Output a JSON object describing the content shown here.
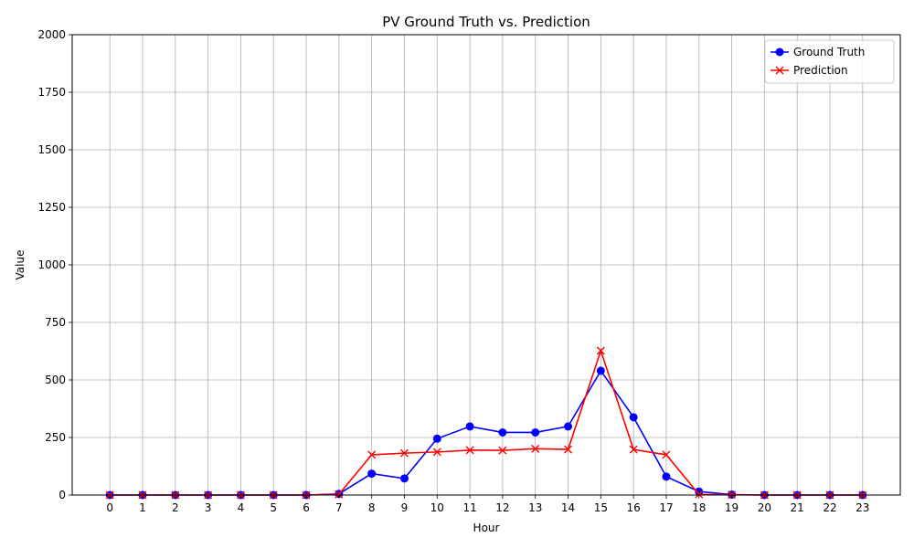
{
  "chart_data": {
    "type": "line",
    "title": "PV Ground Truth vs. Prediction",
    "xlabel": "Hour",
    "ylabel": "Value",
    "x": [
      0,
      1,
      2,
      3,
      4,
      5,
      6,
      7,
      8,
      9,
      10,
      11,
      12,
      13,
      14,
      15,
      16,
      17,
      18,
      19,
      20,
      21,
      22,
      23
    ],
    "ylim": [
      0,
      2000
    ],
    "yticks": [
      0,
      250,
      500,
      750,
      1000,
      1250,
      1500,
      1750,
      2000
    ],
    "grid": true,
    "legend_position": "top-right",
    "series": [
      {
        "name": "Ground Truth",
        "color": "#0000ff",
        "marker": "circle",
        "values": [
          0,
          0,
          0,
          0,
          0,
          0,
          0,
          5,
          93,
          72,
          245,
          298,
          272,
          272,
          298,
          540,
          338,
          80,
          15,
          2,
          0,
          0,
          0,
          0
        ]
      },
      {
        "name": "Prediction",
        "color": "#ff0000",
        "marker": "x",
        "values": [
          0,
          0,
          0,
          0,
          0,
          0,
          0,
          3,
          175,
          182,
          187,
          195,
          194,
          201,
          198,
          627,
          198,
          175,
          3,
          1,
          0,
          0,
          0,
          0
        ]
      }
    ]
  }
}
